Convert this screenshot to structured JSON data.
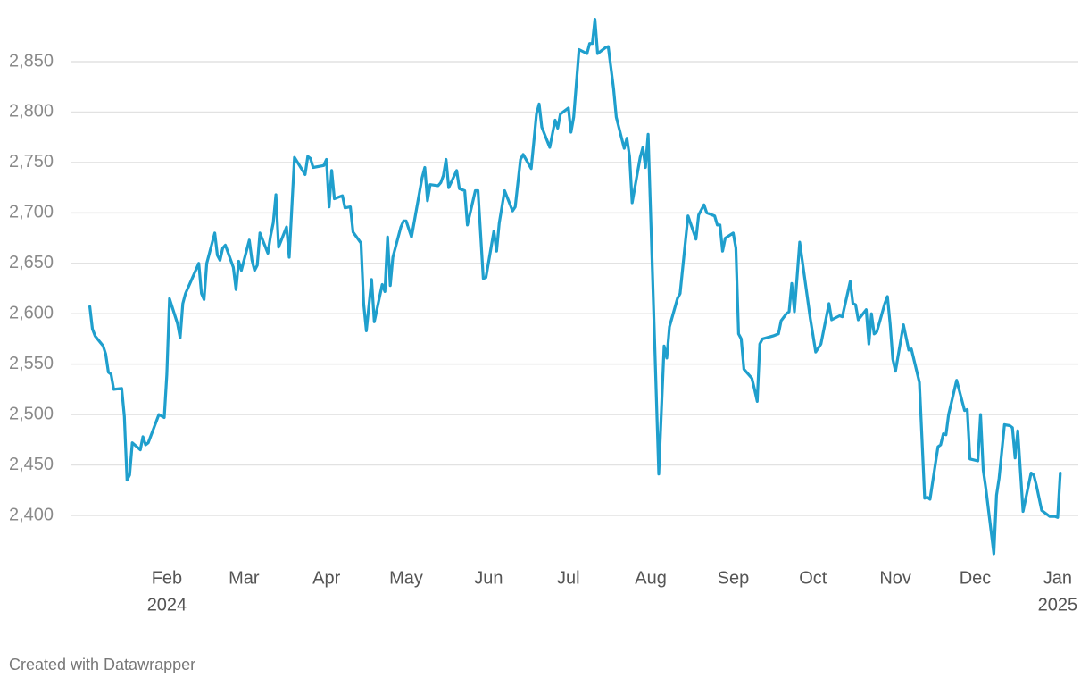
{
  "chart_data": {
    "type": "line",
    "x": [
      2,
      3,
      4,
      7,
      8,
      9,
      10,
      11,
      14,
      15,
      16,
      17,
      18,
      21,
      22,
      23,
      24,
      28,
      30,
      31,
      32,
      35,
      36,
      37,
      38,
      43,
      44,
      45,
      46,
      49,
      50,
      51,
      52,
      53,
      56,
      57,
      58,
      59,
      62,
      63,
      64,
      65,
      66,
      69,
      70,
      71,
      72,
      73,
      76,
      77,
      79,
      83,
      84,
      85,
      86,
      90,
      91,
      92,
      93,
      94,
      97,
      98,
      100,
      101,
      104,
      105,
      106,
      108,
      109,
      112,
      113,
      114,
      115,
      116,
      119,
      120,
      121,
      123,
      127,
      128,
      129,
      130,
      133,
      134,
      135,
      136,
      137,
      140,
      141,
      143,
      144,
      147,
      148,
      150,
      151,
      154,
      155,
      156,
      158,
      161,
      162,
      164,
      165,
      168,
      169,
      170,
      171,
      172,
      175,
      177,
      178,
      179,
      182,
      183,
      184,
      186,
      189,
      190,
      191,
      192,
      193,
      196,
      197,
      199,
      200,
      203,
      204,
      205,
      206,
      209,
      210,
      211,
      212,
      216,
      218,
      219,
      220,
      223,
      224,
      227,
      230,
      231,
      233,
      234,
      237,
      238,
      239,
      240,
      241,
      244,
      245,
      246,
      247,
      248,
      251,
      252,
      253,
      254,
      255,
      259,
      261,
      262,
      264,
      265,
      266,
      267,
      269,
      273,
      275,
      277,
      280,
      281,
      284,
      285,
      288,
      289,
      290,
      291,
      294,
      295,
      296,
      297,
      298,
      301,
      302,
      303,
      304,
      305,
      308,
      310,
      311,
      314,
      316,
      317,
      318,
      321,
      322,
      323,
      324,
      325,
      328,
      331,
      332,
      333,
      336,
      337,
      338,
      339,
      342,
      343,
      344,
      346,
      348,
      349,
      350,
      351,
      353,
      356,
      357,
      358,
      360,
      363,
      365,
      366,
      367
    ],
    "values": [
      2607,
      2585,
      2578,
      2568,
      2560,
      2542,
      2540,
      2525,
      2526,
      2498,
      2435,
      2440,
      2472,
      2465,
      2478,
      2470,
      2472,
      2500,
      2497,
      2540,
      2615,
      2590,
      2576,
      2610,
      2620,
      2650,
      2620,
      2614,
      2650,
      2680,
      2658,
      2653,
      2665,
      2668,
      2646,
      2624,
      2652,
      2643,
      2673,
      2653,
      2643,
      2648,
      2680,
      2660,
      2677,
      2690,
      2718,
      2666,
      2686,
      2656,
      2755,
      2738,
      2756,
      2754,
      2745,
      2747,
      2753,
      2706,
      2742,
      2714,
      2717,
      2705,
      2706,
      2681,
      2670,
      2610,
      2583,
      2634,
      2592,
      2629,
      2622,
      2676,
      2628,
      2656,
      2686,
      2692,
      2692,
      2676,
      2735,
      2745,
      2712,
      2728,
      2727,
      2730,
      2737,
      2753,
      2725,
      2742,
      2724,
      2722,
      2688,
      2722,
      2722,
      2635,
      2636,
      2682,
      2662,
      2690,
      2722,
      2702,
      2706,
      2753,
      2758,
      2744,
      2770,
      2798,
      2808,
      2785,
      2765,
      2792,
      2784,
      2798,
      2804,
      2780,
      2795,
      2862,
      2858,
      2868,
      2868,
      2892,
      2858,
      2864,
      2865,
      2823,
      2795,
      2764,
      2774,
      2756,
      2710,
      2755,
      2765,
      2745,
      2778,
      2441,
      2568,
      2556,
      2587,
      2615,
      2620,
      2697,
      2674,
      2698,
      2708,
      2700,
      2697,
      2688,
      2688,
      2662,
      2675,
      2680,
      2665,
      2580,
      2575,
      2545,
      2536,
      2525,
      2513,
      2570,
      2575,
      2578,
      2580,
      2593,
      2600,
      2602,
      2630,
      2602,
      2671,
      2595,
      2562,
      2570,
      2610,
      2594,
      2598,
      2597,
      2632,
      2610,
      2609,
      2594,
      2604,
      2570,
      2600,
      2580,
      2582,
      2610,
      2617,
      2590,
      2555,
      2543,
      2589,
      2564,
      2565,
      2532,
      2417,
      2418,
      2416,
      2468,
      2470,
      2481,
      2480,
      2500,
      2534,
      2504,
      2505,
      2456,
      2454,
      2500,
      2445,
      2427,
      2362,
      2420,
      2437,
      2490,
      2489,
      2487,
      2457,
      2484,
      2404,
      2442,
      2440,
      2430,
      2405,
      2399,
      2399,
      2398,
      2442
    ],
    "color": "#1f9fcd",
    "xlim": [
      0,
      374
    ],
    "xticks": [
      {
        "value": 31,
        "label": "Feb",
        "year": "2024"
      },
      {
        "value": 60,
        "label": "Mar"
      },
      {
        "value": 91,
        "label": "Apr"
      },
      {
        "value": 121,
        "label": "May"
      },
      {
        "value": 152,
        "label": "Jun"
      },
      {
        "value": 182,
        "label": "Jul"
      },
      {
        "value": 213,
        "label": "Aug"
      },
      {
        "value": 244,
        "label": "Sep"
      },
      {
        "value": 274,
        "label": "Oct"
      },
      {
        "value": 305,
        "label": "Nov"
      },
      {
        "value": 335,
        "label": "Dec"
      },
      {
        "value": 366,
        "label": "Jan",
        "year": "2025"
      }
    ],
    "ylim": [
      2355,
      2895
    ],
    "yticks": [
      {
        "value": 2400,
        "label": "2,400"
      },
      {
        "value": 2450,
        "label": "2,450"
      },
      {
        "value": 2500,
        "label": "2,500"
      },
      {
        "value": 2550,
        "label": "2,550"
      },
      {
        "value": 2600,
        "label": "2,600"
      },
      {
        "value": 2650,
        "label": "2,650"
      },
      {
        "value": 2700,
        "label": "2,700"
      },
      {
        "value": 2750,
        "label": "2,750"
      },
      {
        "value": 2800,
        "label": "2,800"
      },
      {
        "value": 2850,
        "label": "2,850"
      }
    ],
    "grid": true,
    "footer": "Created with Datawrapper"
  }
}
